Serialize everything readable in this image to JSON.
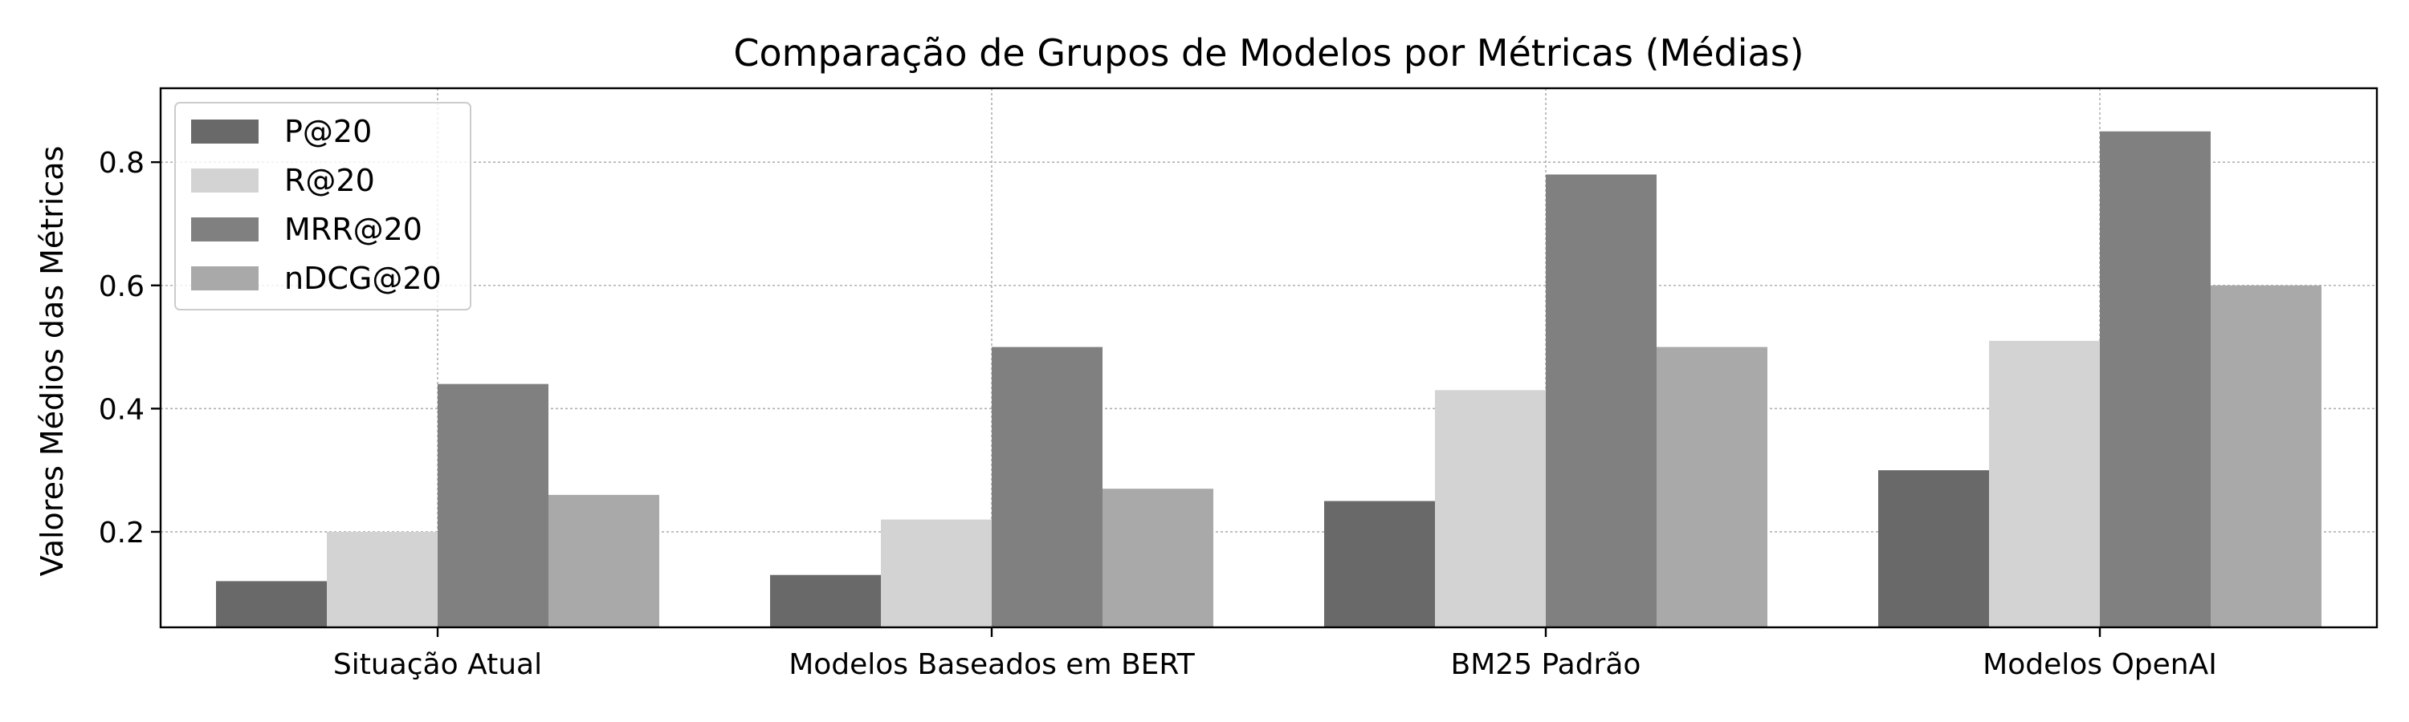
{
  "chart_data": {
    "type": "bar",
    "title": "Comparação de Grupos de Modelos por Métricas (Médias)",
    "xlabel": "",
    "ylabel": "Valores Médios das Métricas",
    "categories": [
      "Situação Atual",
      "Modelos Baseados em BERT",
      "BM25 Padrão",
      "Modelos OpenAI"
    ],
    "series": [
      {
        "name": "P@20",
        "color": "#696969",
        "values": [
          0.12,
          0.13,
          0.25,
          0.3
        ]
      },
      {
        "name": "R@20",
        "color": "#d3d3d3",
        "values": [
          0.2,
          0.22,
          0.43,
          0.51
        ]
      },
      {
        "name": "MRR@20",
        "color": "#808080",
        "values": [
          0.44,
          0.5,
          0.78,
          0.85
        ]
      },
      {
        "name": "nDCG@20",
        "color": "#a9a9a9",
        "values": [
          0.26,
          0.27,
          0.5,
          0.6
        ]
      }
    ],
    "ylim": [
      0.045,
      0.92
    ],
    "yticks": [
      0.2,
      0.4,
      0.6,
      0.8
    ],
    "ytick_labels": [
      "0.2",
      "0.4",
      "0.6",
      "0.8"
    ],
    "grid": true,
    "legend_position": "top-left"
  }
}
